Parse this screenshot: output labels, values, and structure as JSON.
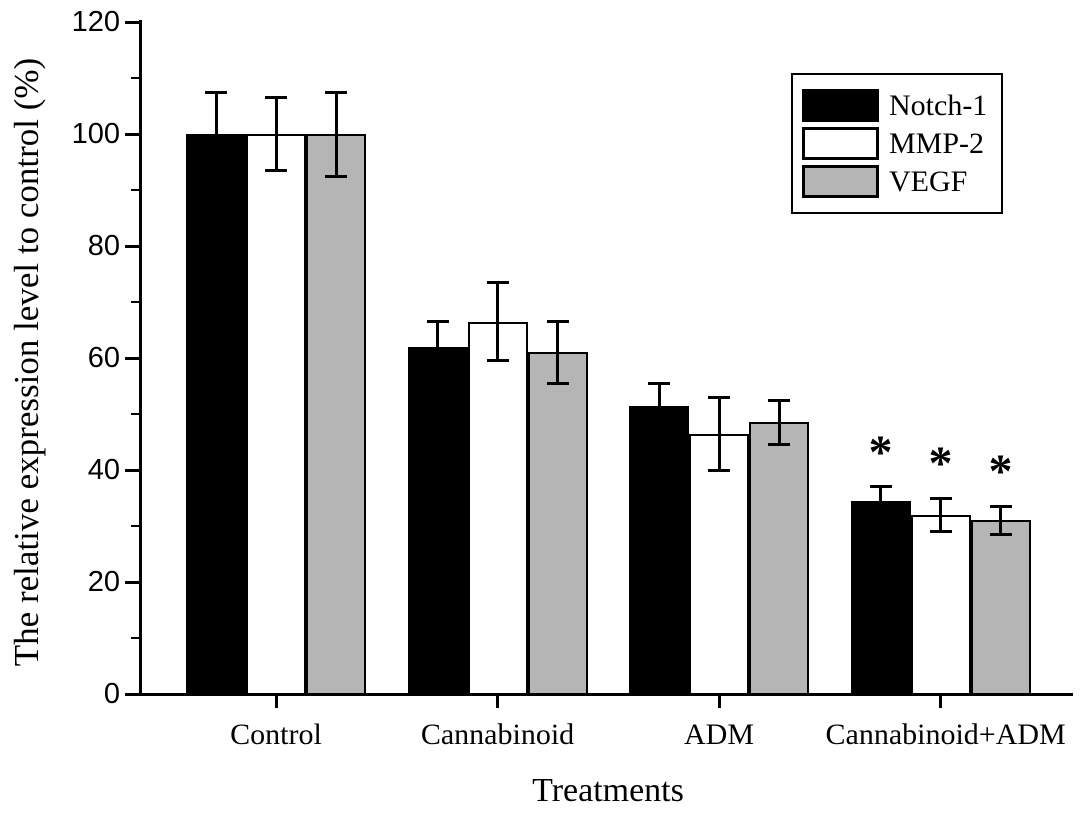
{
  "figure": {
    "background": "#ffffff",
    "axis_color": "#000000"
  },
  "chart_data": {
    "type": "bar",
    "title": "",
    "xlabel": "Treatments",
    "ylabel": "The relative expression level to control (%)",
    "ylim": [
      0,
      120
    ],
    "yticks": [
      0,
      20,
      40,
      60,
      80,
      100,
      120
    ],
    "yticks_minor": [
      10,
      30,
      50,
      70,
      90,
      110
    ],
    "categories": [
      "Control",
      "Cannabinoid",
      "ADM",
      "Cannabinoid+ADM"
    ],
    "series": [
      {
        "name": "Notch-1",
        "color": "#000000",
        "values": [
          100,
          62,
          51.5,
          34.5
        ],
        "errors": [
          7.5,
          4.5,
          4,
          2.5
        ]
      },
      {
        "name": "MMP-2",
        "color": "#ffffff",
        "values": [
          100,
          66.5,
          46.5,
          32
        ],
        "errors": [
          6.5,
          7,
          6.5,
          3
        ]
      },
      {
        "name": "VEGF",
        "color": "#b5b5b5",
        "values": [
          100,
          61,
          48.5,
          31
        ],
        "errors": [
          7.5,
          5.5,
          4,
          2.5
        ]
      }
    ],
    "error_bars": true,
    "significance_markers": [
      {
        "category_index": 3,
        "series_index": 0,
        "marker": "*"
      },
      {
        "category_index": 3,
        "series_index": 1,
        "marker": "*"
      },
      {
        "category_index": 3,
        "series_index": 2,
        "marker": "*"
      }
    ],
    "legend": {
      "position": "top-right",
      "entries": [
        "Notch-1",
        "MMP-2",
        "VEGF"
      ]
    },
    "grid": false
  }
}
